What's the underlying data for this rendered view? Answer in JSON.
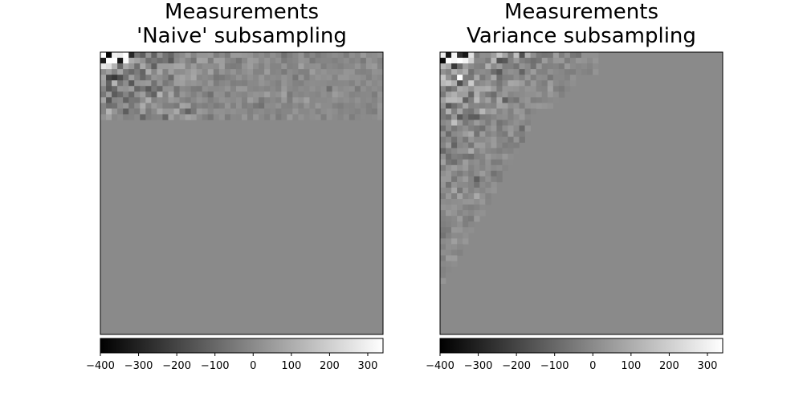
{
  "chart_data": [
    {
      "type": "heatmap",
      "title": "Measurements\n'Naive' subsampling",
      "grid": false,
      "colormap": "gray",
      "colorbar": {
        "orientation": "horizontal",
        "placement": "bottom",
        "range": [
          -400,
          340
        ],
        "ticks": [
          -400,
          -300,
          -200,
          -100,
          0,
          100,
          200,
          300
        ],
        "tick_labels": [
          "−400",
          "−300",
          "−200",
          "−100",
          "0",
          "100",
          "200",
          "300"
        ]
      },
      "matrix_size": [
        50,
        50
      ],
      "background_value": 0,
      "nonzero_region": "top 12 rows, all columns"
    },
    {
      "type": "heatmap",
      "title": "Measurements\nVariance subsampling",
      "grid": false,
      "colormap": "gray",
      "colorbar": {
        "orientation": "horizontal",
        "placement": "bottom",
        "range": [
          -400,
          340
        ],
        "ticks": [
          -400,
          -300,
          -200,
          -100,
          0,
          100,
          200,
          300
        ],
        "tick_labels": [
          "−400",
          "−300",
          "−200",
          "−100",
          "0",
          "100",
          "200",
          "300"
        ]
      },
      "matrix_size": [
        50,
        50
      ],
      "background_value": 0,
      "nonzero_region": "upper-left triangular region, tapering down the first columns"
    }
  ]
}
